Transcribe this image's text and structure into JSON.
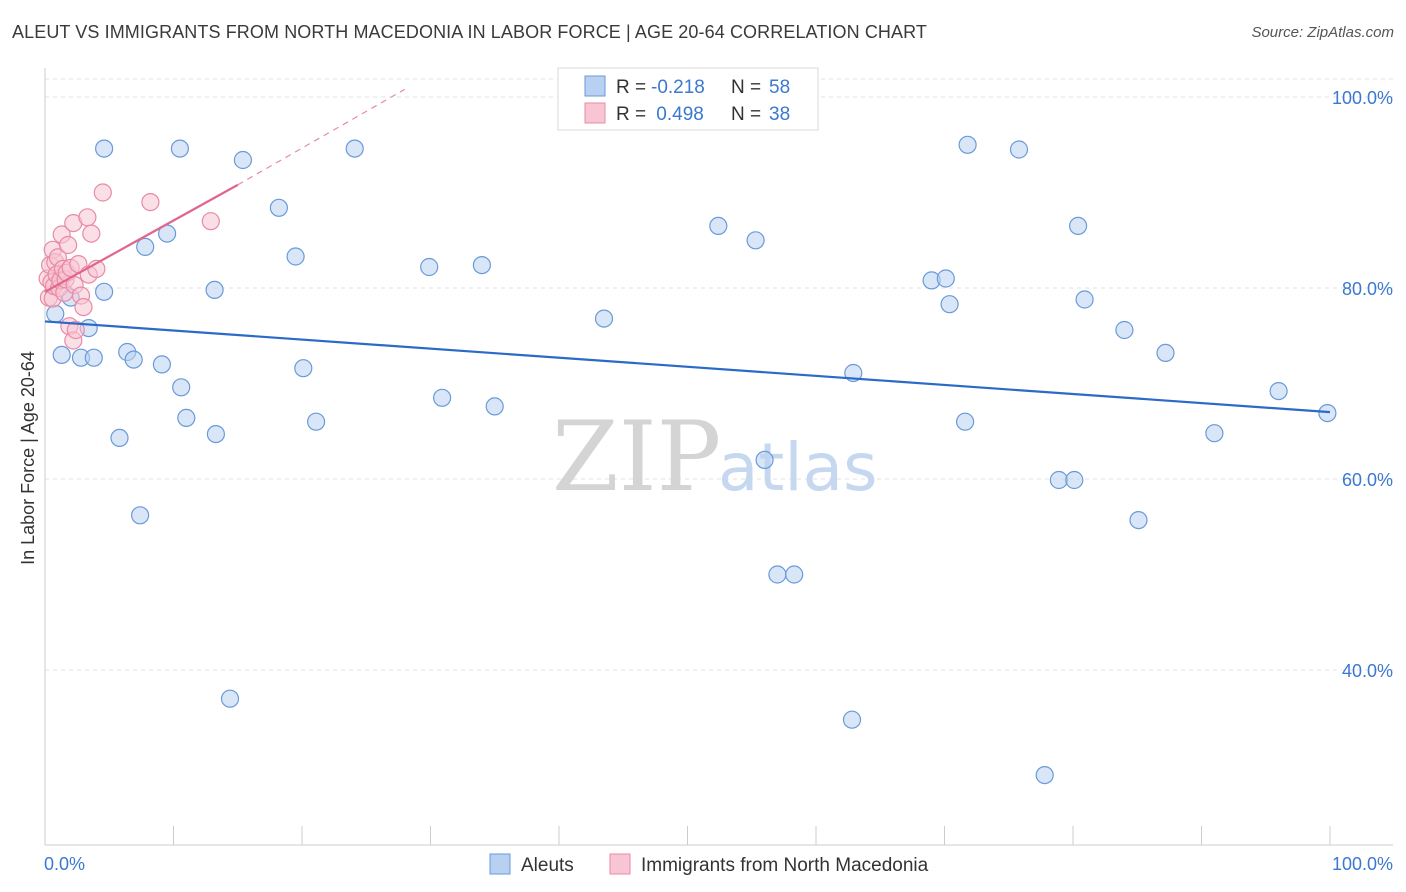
{
  "header": {
    "title": "ALEUT VS IMMIGRANTS FROM NORTH MACEDONIA IN LABOR FORCE | AGE 20-64 CORRELATION CHART",
    "source": "Source: ZipAtlas.com"
  },
  "watermark": {
    "zip": "ZIP",
    "atlas": "atlas"
  },
  "colors": {
    "blue_fill": "#b8d1f2",
    "blue_stroke": "#6a9ad8",
    "blue_line": "#2a6ac8",
    "pink_fill": "#f7c5d4",
    "pink_stroke": "#e88aa6",
    "pink_line": "#e0668e",
    "tick": "#3b78d0",
    "grid": "#e2e2e2"
  },
  "legend": {
    "rows": [
      {
        "r_label": "R =",
        "r_value": "-0.218",
        "n_label": "N =",
        "n_value": "58"
      },
      {
        "r_label": "R =",
        "r_value": " 0.498",
        "n_label": "N =",
        "n_value": "38"
      }
    ]
  },
  "chart_data": {
    "type": "scatter",
    "title": "ALEUT VS IMMIGRANTS FROM NORTH MACEDONIA IN LABOR FORCE | AGE 20-64 CORRELATION CHART",
    "xlabel": "",
    "ylabel": "In Labor Force | Age 20-64",
    "xlim": [
      0,
      100
    ],
    "ylim": [
      20,
      102
    ],
    "x_tick_labels": [
      "0.0%",
      "100.0%"
    ],
    "y_ticks": [
      100,
      80,
      60,
      40
    ],
    "y_tick_labels": [
      "100.0%",
      "80.0%",
      "60.0%",
      "40.0%"
    ],
    "grid": true,
    "legend_position": "top-center",
    "series": [
      {
        "name": "Aleuts",
        "r": -0.218,
        "n": 58,
        "trend": {
          "x": [
            0,
            100
          ],
          "y": [
            76.5,
            67.0
          ]
        },
        "points": [
          [
            0.8,
            77.3
          ],
          [
            1.3,
            73.0
          ],
          [
            2.0,
            79.0
          ],
          [
            2.8,
            72.7
          ],
          [
            3.4,
            75.8
          ],
          [
            3.8,
            72.7
          ],
          [
            4.6,
            94.6
          ],
          [
            4.6,
            79.6
          ],
          [
            5.8,
            64.3
          ],
          [
            6.4,
            73.3
          ],
          [
            6.9,
            72.5
          ],
          [
            7.4,
            56.2
          ],
          [
            7.8,
            84.3
          ],
          [
            9.1,
            72.0
          ],
          [
            9.5,
            85.7
          ],
          [
            10.5,
            94.6
          ],
          [
            10.6,
            69.6
          ],
          [
            11.0,
            66.4
          ],
          [
            13.2,
            79.8
          ],
          [
            13.3,
            64.7
          ],
          [
            14.4,
            37.0
          ],
          [
            15.4,
            93.4
          ],
          [
            18.2,
            88.4
          ],
          [
            19.5,
            83.3
          ],
          [
            20.1,
            71.6
          ],
          [
            21.1,
            66.0
          ],
          [
            24.1,
            94.6
          ],
          [
            29.9,
            82.2
          ],
          [
            30.9,
            68.5
          ],
          [
            34.0,
            82.4
          ],
          [
            35.0,
            67.6
          ],
          [
            43.5,
            76.8
          ],
          [
            52.4,
            86.5
          ],
          [
            55.3,
            85.0
          ],
          [
            56.0,
            62.0
          ],
          [
            57.0,
            50.0
          ],
          [
            58.3,
            50.0
          ],
          [
            62.8,
            34.8
          ],
          [
            62.9,
            71.1
          ],
          [
            69.0,
            80.8
          ],
          [
            70.1,
            81.0
          ],
          [
            70.4,
            78.3
          ],
          [
            71.6,
            66.0
          ],
          [
            71.8,
            95.0
          ],
          [
            75.8,
            94.5
          ],
          [
            77.8,
            29.0
          ],
          [
            78.9,
            59.9
          ],
          [
            80.1,
            59.9
          ],
          [
            80.4,
            86.5
          ],
          [
            80.9,
            78.8
          ],
          [
            84.0,
            75.6
          ],
          [
            85.1,
            55.7
          ],
          [
            87.2,
            73.2
          ],
          [
            91.0,
            64.8
          ],
          [
            96.0,
            69.2
          ],
          [
            99.8,
            66.9
          ]
        ]
      },
      {
        "name": "Immigrants from North Macedonia",
        "r": 0.498,
        "n": 38,
        "trend": {
          "x": [
            0,
            15
          ],
          "y": [
            79.6,
            90.8
          ]
        },
        "trend_extension": {
          "x": [
            15,
            28
          ],
          "y": [
            90.8,
            100.8
          ]
        },
        "points": [
          [
            0.2,
            81.0
          ],
          [
            0.3,
            79.0
          ],
          [
            0.4,
            82.4
          ],
          [
            0.5,
            80.6
          ],
          [
            0.6,
            84.0
          ],
          [
            0.6,
            78.9
          ],
          [
            0.7,
            80.2
          ],
          [
            0.8,
            82.7
          ],
          [
            0.9,
            81.4
          ],
          [
            1.0,
            83.2
          ],
          [
            1.1,
            80.0
          ],
          [
            1.2,
            80.8
          ],
          [
            1.3,
            85.6
          ],
          [
            1.4,
            82.0
          ],
          [
            1.5,
            79.5
          ],
          [
            1.6,
            80.9
          ],
          [
            1.7,
            81.6
          ],
          [
            1.8,
            84.5
          ],
          [
            1.9,
            76.0
          ],
          [
            2.0,
            82.1
          ],
          [
            2.2,
            86.8
          ],
          [
            2.2,
            74.5
          ],
          [
            2.3,
            80.3
          ],
          [
            2.4,
            75.6
          ],
          [
            2.6,
            82.5
          ],
          [
            2.8,
            79.2
          ],
          [
            3.0,
            78.0
          ],
          [
            3.3,
            87.4
          ],
          [
            3.4,
            81.4
          ],
          [
            3.6,
            85.7
          ],
          [
            4.0,
            82.0
          ],
          [
            4.5,
            90.0
          ],
          [
            8.2,
            89.0
          ],
          [
            12.9,
            87.0
          ]
        ]
      }
    ]
  },
  "bottom_legend": {
    "items": [
      {
        "label": "Aleuts"
      },
      {
        "label": "Immigrants from North Macedonia"
      }
    ]
  }
}
